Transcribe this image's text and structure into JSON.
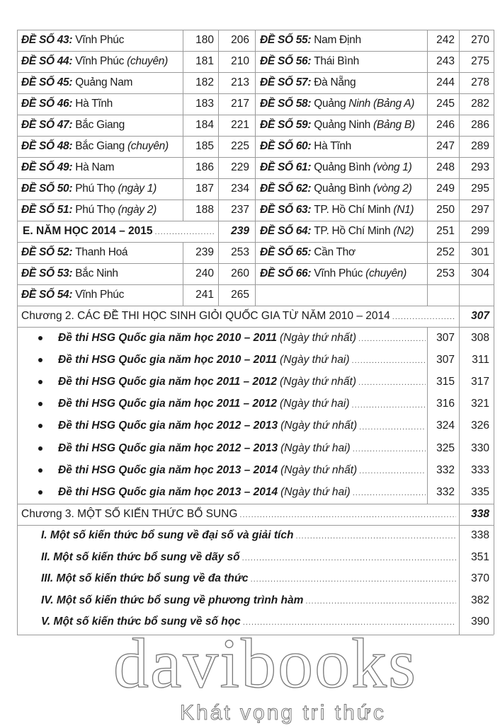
{
  "left_entries": [
    {
      "label": "ĐỀ SỐ 43:",
      "place": "Vĩnh Phúc",
      "note": "",
      "start": "180",
      "end": "206"
    },
    {
      "label": "ĐỀ SỐ 44:",
      "place": "Vĩnh Phúc",
      "note": "(chuyên)",
      "start": "181",
      "end": "210"
    },
    {
      "label": "ĐỀ SỐ 45:",
      "place": "Quảng Nam",
      "note": "",
      "start": "182",
      "end": "213"
    },
    {
      "label": "ĐỀ SỐ 46:",
      "place": "Hà Tĩnh",
      "note": "",
      "start": "183",
      "end": "217"
    },
    {
      "label": "ĐỀ SỐ 47:",
      "place": "Bắc Giang",
      "note": "",
      "start": "184",
      "end": "221"
    },
    {
      "label": "ĐỀ SỐ 48:",
      "place": "Bắc Giang",
      "note": "(chuyên)",
      "start": "185",
      "end": "225"
    },
    {
      "label": "ĐỀ SỐ 49:",
      "place": "Hà Nam",
      "note": "",
      "start": "186",
      "end": "229"
    },
    {
      "label": "ĐỀ SỐ 50:",
      "place": "Phú Thọ",
      "note": "(ngày 1)",
      "start": "187",
      "end": "234"
    },
    {
      "label": "ĐỀ SỐ 51:",
      "place": "Phú Thọ",
      "note": "(ngày 2)",
      "start": "188",
      "end": "237"
    }
  ],
  "section_e": {
    "title": "E. NĂM HỌC 2014 – 2015",
    "page": "239"
  },
  "left_entries_2": [
    {
      "label": "ĐỀ SỐ 52:",
      "place": "Thanh Hoá",
      "note": "",
      "start": "239",
      "end": "253"
    },
    {
      "label": "ĐỀ SỐ 53:",
      "place": "Bắc Ninh",
      "note": "",
      "start": "240",
      "end": "260"
    },
    {
      "label": "ĐỀ SỐ 54:",
      "place": "Vĩnh Phúc",
      "note": "",
      "start": "241",
      "end": "265"
    }
  ],
  "right_entries": [
    {
      "label": "ĐỀ SỐ 55:",
      "place": "Nam Định",
      "note": "",
      "start": "242",
      "end": "270"
    },
    {
      "label": "ĐỀ SỐ 56:",
      "place": "Thái Bình",
      "note": "",
      "start": "243",
      "end": "275"
    },
    {
      "label": "ĐỀ SỐ 57:",
      "place": "Đà Nẵng",
      "note": "",
      "start": "244",
      "end": "278"
    },
    {
      "label": "ĐỀ SỐ 58:",
      "place": "Quảng",
      "note": "Ninh (Bảng A)",
      "start": "245",
      "end": "282"
    },
    {
      "label": "ĐỀ SỐ 59:",
      "place": "Quảng Ninh",
      "note": "(Bảng B)",
      "start": "246",
      "end": "286"
    },
    {
      "label": "ĐỀ SỐ 60:",
      "place": "Hà Tĩnh",
      "note": "",
      "start": "247",
      "end": "289"
    },
    {
      "label": "ĐỀ SỐ 61:",
      "place": "Quảng Bình",
      "note": "(vòng 1)",
      "start": "248",
      "end": "293"
    },
    {
      "label": "ĐỀ SỐ 62:",
      "place": "Quảng Bình",
      "note": "(vòng 2)",
      "start": "249",
      "end": "295"
    },
    {
      "label": "ĐỀ SỐ 63:",
      "place": "TP. Hồ Chí Minh",
      "note": "(N1)",
      "start": "250",
      "end": "297"
    },
    {
      "label": "ĐỀ SỐ 64:",
      "place": "TP. Hồ Chí Minh",
      "note": "(N2)",
      "start": "251",
      "end": "299"
    },
    {
      "label": "ĐỀ SỐ 65:",
      "place": "Cần Thơ",
      "note": "",
      "start": "252",
      "end": "301"
    },
    {
      "label": "ĐỀ SỐ 66:",
      "place": "Vĩnh Phúc",
      "note": "(chuyên)",
      "start": "253",
      "end": "304"
    }
  ],
  "chapter2": {
    "title": "Chương 2. CÁC ĐỀ THI HỌC SINH GIỎI QUỐC GIA TỪ NĂM 2010 – 2014",
    "page": "307",
    "items": [
      {
        "title": "Đề thi HSG Quốc gia năm học 2010 – 2011",
        "note": "(Ngày thứ nhất)",
        "start": "307",
        "end": "308"
      },
      {
        "title": "Đề thi HSG Quốc gia năm học 2010 – 2011",
        "note": "(Ngày thứ hai)",
        "start": "307",
        "end": "311"
      },
      {
        "title": "Đề thi HSG Quốc gia năm học 2011 – 2012",
        "note": "(Ngày thứ nhất)",
        "start": "315",
        "end": "317"
      },
      {
        "title": "Đề thi HSG Quốc gia năm học 2011 – 2012",
        "note": "(Ngày thứ hai)",
        "start": "316",
        "end": "321"
      },
      {
        "title": "Đề thi HSG Quốc gia năm học 2012 – 2013",
        "note": "(Ngày thứ nhất)",
        "start": "324",
        "end": "326"
      },
      {
        "title": "Đề thi HSG Quốc gia năm học 2012 – 2013",
        "note": "(Ngày thứ hai)",
        "start": "325",
        "end": "330"
      },
      {
        "title": "Đề thi HSG Quốc gia năm học 2013 – 2014",
        "note": "(Ngày thứ nhất)",
        "start": "332",
        "end": "333"
      },
      {
        "title": "Đề thi HSG Quốc gia năm học 2013 – 2014",
        "note": "(Ngày thứ hai)",
        "start": "332",
        "end": "335"
      }
    ]
  },
  "chapter3": {
    "title": "Chương 3. MỘT SỐ KIẾN THỨC BỔ SUNG",
    "page": "338",
    "items": [
      {
        "title": "I. Một số kiến thức bổ sung về đại số và giải tích",
        "page": "338"
      },
      {
        "title": "II. Một số kiến thức bổ sung về dãy số",
        "page": "351"
      },
      {
        "title": "III. Một số kiến thức bổ sung về đa thức",
        "page": "370"
      },
      {
        "title": "IV. Một số kiến thức bổ sung về phương trình hàm",
        "page": "382"
      },
      {
        "title": "V. Một số kiến thức bổ sung về số học",
        "page": "390"
      }
    ]
  },
  "watermark": {
    "brand": "davibooks",
    "slogan": "Khát vọng tri thức"
  },
  "dot_leader": "......................................................................................................................................"
}
